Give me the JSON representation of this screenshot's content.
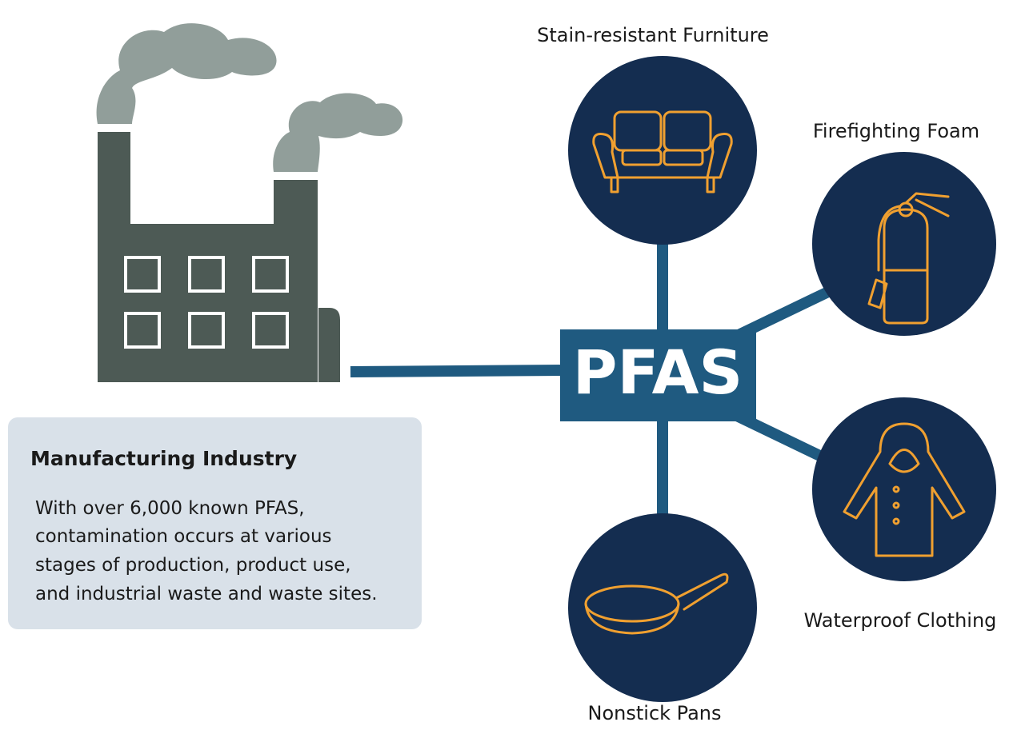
{
  "center": {
    "label": "PFAS"
  },
  "products": [
    {
      "label": "Stain-resistant Furniture"
    },
    {
      "label": "Firefighting Foam"
    },
    {
      "label": "Waterproof Clothing"
    },
    {
      "label": "Nonstick Pans"
    }
  ],
  "source": {
    "title": "Manufacturing Industry",
    "lines": [
      "With over 6,000 known PFAS,",
      "contamination occurs at various",
      "stages of production, product use,",
      "and industrial waste and waste sites."
    ]
  }
}
